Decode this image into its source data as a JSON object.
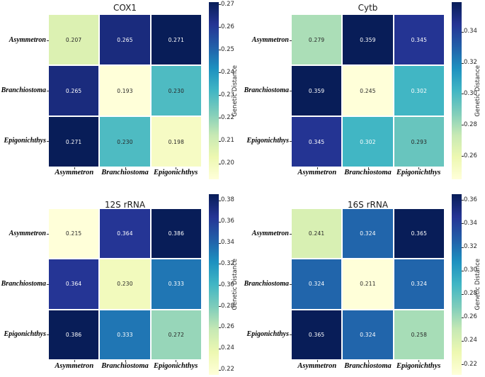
{
  "figure": {
    "background": "#ffffff",
    "colormap": {
      "name": "YlGnBu",
      "stops": [
        "#ffffd9",
        "#edf8b1",
        "#c7e9b4",
        "#7fcdbb",
        "#41b6c4",
        "#1d91c0",
        "#225ea8",
        "#253494",
        "#081d58"
      ]
    },
    "annotation_colors": {
      "dark": "#262626",
      "light": "#ffffff"
    },
    "species": [
      "Asymmetron",
      "Branchiostoma",
      "Epigonichthys"
    ]
  },
  "chart_data": [
    {
      "type": "heatmap",
      "title": "COX1",
      "categories": [
        "Asymmetron",
        "Branchiostoma",
        "Epigonichthys"
      ],
      "values": [
        [
          0.207,
          0.265,
          0.271
        ],
        [
          0.265,
          0.193,
          0.23
        ],
        [
          0.271,
          0.23,
          0.198
        ]
      ],
      "vmin": 0.193,
      "vmax": 0.271,
      "value_decimals": 3,
      "colorbar": {
        "label": "Genetic Distance",
        "ticks": [
          0.27,
          0.26,
          0.25,
          0.24,
          0.23,
          0.22,
          0.21,
          0.2
        ],
        "tick_decimals": 2
      }
    },
    {
      "type": "heatmap",
      "title": "Cytb",
      "categories": [
        "Asymmetron",
        "Branchiostoma",
        "Epigonichthys"
      ],
      "values": [
        [
          0.279,
          0.359,
          0.345
        ],
        [
          0.359,
          0.245,
          0.302
        ],
        [
          0.345,
          0.302,
          0.293
        ]
      ],
      "vmin": 0.245,
      "vmax": 0.359,
      "value_decimals": 3,
      "colorbar": {
        "label": "Genetic Distance",
        "ticks": [
          0.34,
          0.32,
          0.3,
          0.28,
          0.26
        ],
        "tick_decimals": 2
      }
    },
    {
      "type": "heatmap",
      "title": "12S rRNA",
      "categories": [
        "Asymmetron",
        "Branchiostoma",
        "Epigonichthys"
      ],
      "values": [
        [
          0.215,
          0.364,
          0.386
        ],
        [
          0.364,
          0.23,
          0.333
        ],
        [
          0.386,
          0.333,
          0.272
        ]
      ],
      "vmin": 0.215,
      "vmax": 0.386,
      "value_decimals": 3,
      "colorbar": {
        "label": "Genetic Distance",
        "ticks": [
          0.38,
          0.36,
          0.34,
          0.32,
          0.3,
          0.28,
          0.26,
          0.24,
          0.22
        ],
        "tick_decimals": 2
      }
    },
    {
      "type": "heatmap",
      "title": "16S rRNA",
      "categories": [
        "Asymmetron",
        "Branchiostoma",
        "Epigonichthys"
      ],
      "values": [
        [
          0.241,
          0.324,
          0.365
        ],
        [
          0.324,
          0.211,
          0.324
        ],
        [
          0.365,
          0.324,
          0.258
        ]
      ],
      "vmin": 0.211,
      "vmax": 0.365,
      "value_decimals": 3,
      "colorbar": {
        "label": "Genetic Distance",
        "ticks": [
          0.36,
          0.34,
          0.32,
          0.3,
          0.28,
          0.26,
          0.24,
          0.22
        ],
        "tick_decimals": 2
      }
    }
  ]
}
